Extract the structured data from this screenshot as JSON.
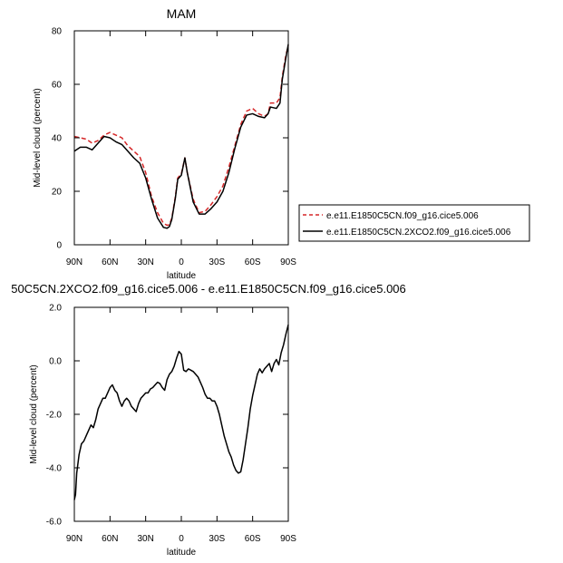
{
  "chart_data": [
    {
      "type": "line",
      "title": "MAM",
      "xlabel": "latitude",
      "ylabel": "Mid-level cloud (percent)",
      "xlim": [
        90,
        -90
      ],
      "ylim": [
        0,
        80
      ],
      "x_ticks": [
        {
          "value": 90,
          "label": "90N"
        },
        {
          "value": 60,
          "label": "60N"
        },
        {
          "value": 30,
          "label": "30N"
        },
        {
          "value": 0,
          "label": "0"
        },
        {
          "value": -30,
          "label": "30S"
        },
        {
          "value": -60,
          "label": "60S"
        },
        {
          "value": -90,
          "label": "90S"
        }
      ],
      "y_ticks": [
        {
          "value": 0,
          "label": "0"
        },
        {
          "value": 20,
          "label": "20"
        },
        {
          "value": 40,
          "label": "40"
        },
        {
          "value": 60,
          "label": "60"
        },
        {
          "value": 80,
          "label": "80"
        }
      ],
      "legend": "right",
      "grid": false,
      "series": [
        {
          "name": "e.e11.E1850C5CN.f09_g16.cice5.006",
          "color": "#d62728",
          "dash": "dashed",
          "x": [
            90,
            85,
            80,
            75,
            70,
            65,
            60,
            55,
            50,
            45,
            40,
            35,
            30,
            25,
            20,
            15,
            12,
            10,
            8,
            5,
            3,
            0,
            -3,
            -5,
            -10,
            -15,
            -20,
            -25,
            -30,
            -35,
            -40,
            -45,
            -50,
            -55,
            -60,
            -65,
            -70,
            -73,
            -75,
            -80,
            -83,
            -85,
            -88,
            -90
          ],
          "y": [
            40.5,
            40,
            39.5,
            38,
            39,
            41,
            42,
            41,
            40,
            37,
            35,
            33,
            27,
            18,
            12,
            8,
            7.3,
            7.5,
            10,
            18,
            25,
            26.5,
            32.5,
            27,
            17,
            12,
            12.5,
            15,
            18,
            22,
            29,
            37,
            45,
            50,
            51,
            49,
            48,
            49,
            53,
            53,
            55,
            63,
            71,
            74.5
          ]
        },
        {
          "name": "e.e11.E1850C5CN.2XCO2.f09_g16.cice5.006",
          "color": "#000000",
          "dash": "solid",
          "x": [
            90,
            85,
            80,
            75,
            70,
            65,
            60,
            55,
            50,
            45,
            40,
            35,
            30,
            25,
            20,
            15,
            12,
            10,
            8,
            5,
            3,
            0,
            -3,
            -5,
            -10,
            -15,
            -20,
            -25,
            -30,
            -35,
            -40,
            -45,
            -50,
            -55,
            -60,
            -65,
            -70,
            -73,
            -75,
            -80,
            -83,
            -85,
            -88,
            -90
          ],
          "y": [
            35,
            36.5,
            36.5,
            35.5,
            38,
            40.5,
            40,
            38.5,
            37.5,
            35,
            32.5,
            30.5,
            25,
            17,
            10,
            6.5,
            6.2,
            6.8,
            9.5,
            17.5,
            24.5,
            26,
            32.5,
            27,
            16,
            11.5,
            11.5,
            13.5,
            16,
            20,
            27,
            36,
            44,
            48.5,
            49,
            48,
            47.5,
            49,
            51.5,
            51,
            53,
            62,
            70,
            75
          ]
        }
      ]
    },
    {
      "type": "line",
      "title": "50C5CN.2XCO2.f09_g16.cice5.006 - e.e11.E1850C5CN.f09_g16.cice5.006",
      "xlabel": "latitude",
      "ylabel": "Mid-level cloud (percent)",
      "xlim": [
        90,
        -90
      ],
      "ylim": [
        -6,
        2
      ],
      "x_ticks": [
        {
          "value": 90,
          "label": "90N"
        },
        {
          "value": 60,
          "label": "60N"
        },
        {
          "value": 30,
          "label": "30N"
        },
        {
          "value": 0,
          "label": "0"
        },
        {
          "value": -30,
          "label": "30S"
        },
        {
          "value": -60,
          "label": "60S"
        },
        {
          "value": -90,
          "label": "90S"
        }
      ],
      "y_ticks": [
        {
          "value": -6,
          "label": "-6.0"
        },
        {
          "value": -4,
          "label": "-4.0"
        },
        {
          "value": -2,
          "label": "-2.0"
        },
        {
          "value": 0,
          "label": "0.0"
        },
        {
          "value": 2,
          "label": "2.0"
        }
      ],
      "grid": false,
      "series": [
        {
          "color": "#000000",
          "dash": "solid",
          "x": [
            90,
            89,
            88,
            86,
            84,
            82,
            80,
            78,
            76,
            74,
            72,
            70,
            68,
            66,
            64,
            62,
            60,
            58,
            56,
            54,
            52,
            50,
            48,
            46,
            44,
            42,
            40,
            38,
            36,
            34,
            32,
            30,
            28,
            26,
            24,
            22,
            20,
            18,
            16,
            14,
            12,
            10,
            8,
            6,
            4,
            2,
            0,
            -2,
            -4,
            -6,
            -8,
            -10,
            -12,
            -14,
            -16,
            -18,
            -20,
            -22,
            -24,
            -26,
            -28,
            -30,
            -32,
            -34,
            -36,
            -38,
            -40,
            -42,
            -44,
            -46,
            -48,
            -50,
            -52,
            -54,
            -56,
            -58,
            -60,
            -62,
            -64,
            -66,
            -68,
            -70,
            -72,
            -74,
            -76,
            -78,
            -80,
            -82,
            -84,
            -86,
            -88,
            -90
          ],
          "y": [
            -5.2,
            -5,
            -4.2,
            -3.5,
            -3.1,
            -3,
            -2.8,
            -2.6,
            -2.4,
            -2.5,
            -2.2,
            -1.8,
            -1.6,
            -1.4,
            -1.4,
            -1.2,
            -1,
            -0.9,
            -1.1,
            -1.2,
            -1.5,
            -1.7,
            -1.5,
            -1.4,
            -1.5,
            -1.7,
            -1.8,
            -1.9,
            -1.6,
            -1.4,
            -1.3,
            -1.2,
            -1.2,
            -1.05,
            -1,
            -0.9,
            -0.8,
            -0.85,
            -1,
            -1.1,
            -0.7,
            -0.5,
            -0.4,
            -0.2,
            0.1,
            0.35,
            0.25,
            -0.35,
            -0.4,
            -0.3,
            -0.35,
            -0.4,
            -0.5,
            -0.6,
            -0.8,
            -1,
            -1.25,
            -1.4,
            -1.4,
            -1.5,
            -1.5,
            -1.7,
            -2,
            -2.4,
            -2.8,
            -3.1,
            -3.4,
            -3.6,
            -3.9,
            -4.1,
            -4.2,
            -4.15,
            -3.7,
            -3.1,
            -2.5,
            -1.8,
            -1.3,
            -0.9,
            -0.5,
            -0.3,
            -0.45,
            -0.3,
            -0.2,
            -0.1,
            -0.4,
            -0.1,
            0.05,
            -0.15,
            0.3,
            0.6,
            1,
            1.35
          ]
        }
      ]
    }
  ]
}
